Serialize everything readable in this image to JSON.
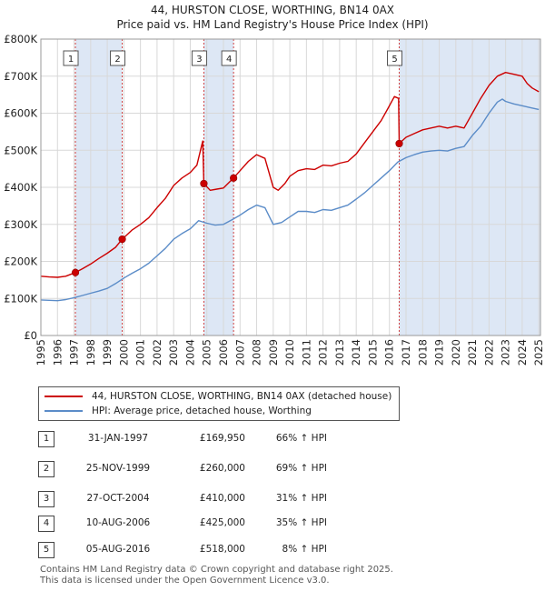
{
  "chart_data": {
    "type": "line",
    "title": "44, HURSTON CLOSE, WORTHING, BN14 0AX",
    "subtitle": "Price paid vs. HM Land Registry's House Price Index (HPI)",
    "xlim": [
      1995,
      2025.1
    ],
    "ylim": [
      0,
      800000
    ],
    "y_ticks": [
      {
        "value": 0,
        "label": "£0"
      },
      {
        "value": 100000,
        "label": "£100K"
      },
      {
        "value": 200000,
        "label": "£200K"
      },
      {
        "value": 300000,
        "label": "£300K"
      },
      {
        "value": 400000,
        "label": "£400K"
      },
      {
        "value": 500000,
        "label": "£500K"
      },
      {
        "value": 600000,
        "label": "£600K"
      },
      {
        "value": 700000,
        "label": "£700K"
      },
      {
        "value": 800000,
        "label": "£800K"
      }
    ],
    "x_ticks": [
      "1995",
      "1996",
      "1997",
      "1998",
      "1999",
      "2000",
      "2001",
      "2002",
      "2003",
      "2004",
      "2005",
      "2006",
      "2007",
      "2008",
      "2009",
      "2010",
      "2011",
      "2012",
      "2013",
      "2014",
      "2015",
      "2016",
      "2017",
      "2018",
      "2019",
      "2020",
      "2021",
      "2022",
      "2023",
      "2024",
      "2025"
    ],
    "colors": {
      "property": "#cc0000",
      "hpi": "#5b8cc8",
      "shade": "#dde7f5",
      "marker_line": "#d04040"
    },
    "series": [
      {
        "name": "44, HURSTON CLOSE, WORTHING, BN14 0AX (detached house)",
        "color": "#cc0000",
        "points": [
          [
            1995.0,
            160000
          ],
          [
            1995.5,
            158000
          ],
          [
            1996.0,
            157000
          ],
          [
            1996.5,
            160000
          ],
          [
            1997.08,
            169950
          ],
          [
            1997.5,
            180000
          ],
          [
            1998.0,
            193000
          ],
          [
            1998.5,
            208000
          ],
          [
            1999.0,
            222000
          ],
          [
            1999.5,
            238000
          ],
          [
            1999.9,
            260000
          ],
          [
            2000.5,
            285000
          ],
          [
            2001.0,
            300000
          ],
          [
            2001.5,
            318000
          ],
          [
            2002.0,
            345000
          ],
          [
            2002.5,
            370000
          ],
          [
            2003.0,
            405000
          ],
          [
            2003.5,
            425000
          ],
          [
            2004.0,
            440000
          ],
          [
            2004.4,
            460000
          ],
          [
            2004.75,
            525000
          ],
          [
            2004.82,
            410000
          ],
          [
            2005.2,
            392000
          ],
          [
            2005.6,
            395000
          ],
          [
            2006.0,
            398000
          ],
          [
            2006.61,
            425000
          ],
          [
            2007.0,
            445000
          ],
          [
            2007.5,
            470000
          ],
          [
            2008.0,
            488000
          ],
          [
            2008.5,
            478000
          ],
          [
            2009.0,
            400000
          ],
          [
            2009.3,
            392000
          ],
          [
            2009.7,
            410000
          ],
          [
            2010.0,
            430000
          ],
          [
            2010.5,
            445000
          ],
          [
            2011.0,
            450000
          ],
          [
            2011.5,
            448000
          ],
          [
            2012.0,
            460000
          ],
          [
            2012.5,
            458000
          ],
          [
            2013.0,
            465000
          ],
          [
            2013.5,
            470000
          ],
          [
            2014.0,
            490000
          ],
          [
            2014.5,
            520000
          ],
          [
            2015.0,
            550000
          ],
          [
            2015.5,
            580000
          ],
          [
            2015.9,
            612000
          ],
          [
            2016.3,
            645000
          ],
          [
            2016.55,
            640000
          ],
          [
            2016.59,
            518000
          ],
          [
            2017.0,
            535000
          ],
          [
            2017.5,
            545000
          ],
          [
            2018.0,
            555000
          ],
          [
            2018.5,
            560000
          ],
          [
            2019.0,
            565000
          ],
          [
            2019.5,
            560000
          ],
          [
            2020.0,
            565000
          ],
          [
            2020.5,
            560000
          ],
          [
            2021.0,
            600000
          ],
          [
            2021.5,
            640000
          ],
          [
            2022.0,
            675000
          ],
          [
            2022.5,
            700000
          ],
          [
            2023.0,
            710000
          ],
          [
            2023.5,
            705000
          ],
          [
            2024.0,
            700000
          ],
          [
            2024.3,
            680000
          ],
          [
            2024.6,
            668000
          ],
          [
            2025.0,
            658000
          ]
        ]
      },
      {
        "name": "HPI: Average price, detached house, Worthing",
        "color": "#5b8cc8",
        "points": [
          [
            1995.0,
            96000
          ],
          [
            1995.5,
            95000
          ],
          [
            1996.0,
            94000
          ],
          [
            1996.5,
            97000
          ],
          [
            1997.0,
            102000
          ],
          [
            1997.5,
            108000
          ],
          [
            1998.0,
            114000
          ],
          [
            1998.5,
            120000
          ],
          [
            1999.0,
            127000
          ],
          [
            1999.5,
            140000
          ],
          [
            2000.0,
            155000
          ],
          [
            2000.5,
            168000
          ],
          [
            2001.0,
            180000
          ],
          [
            2001.5,
            195000
          ],
          [
            2002.0,
            215000
          ],
          [
            2002.5,
            235000
          ],
          [
            2003.0,
            260000
          ],
          [
            2003.5,
            275000
          ],
          [
            2004.0,
            288000
          ],
          [
            2004.5,
            310000
          ],
          [
            2005.0,
            303000
          ],
          [
            2005.5,
            298000
          ],
          [
            2006.0,
            300000
          ],
          [
            2006.5,
            312000
          ],
          [
            2007.0,
            325000
          ],
          [
            2007.5,
            340000
          ],
          [
            2008.0,
            352000
          ],
          [
            2008.5,
            345000
          ],
          [
            2009.0,
            300000
          ],
          [
            2009.5,
            305000
          ],
          [
            2010.0,
            320000
          ],
          [
            2010.5,
            335000
          ],
          [
            2011.0,
            335000
          ],
          [
            2011.5,
            332000
          ],
          [
            2012.0,
            340000
          ],
          [
            2012.5,
            338000
          ],
          [
            2013.0,
            345000
          ],
          [
            2013.5,
            352000
          ],
          [
            2014.0,
            368000
          ],
          [
            2014.5,
            385000
          ],
          [
            2015.0,
            405000
          ],
          [
            2015.5,
            425000
          ],
          [
            2016.0,
            445000
          ],
          [
            2016.5,
            468000
          ],
          [
            2017.0,
            480000
          ],
          [
            2017.5,
            488000
          ],
          [
            2018.0,
            495000
          ],
          [
            2018.5,
            498000
          ],
          [
            2019.0,
            500000
          ],
          [
            2019.5,
            498000
          ],
          [
            2020.0,
            505000
          ],
          [
            2020.5,
            510000
          ],
          [
            2021.0,
            540000
          ],
          [
            2021.5,
            565000
          ],
          [
            2022.0,
            600000
          ],
          [
            2022.5,
            630000
          ],
          [
            2022.8,
            638000
          ],
          [
            2023.0,
            632000
          ],
          [
            2023.5,
            625000
          ],
          [
            2024.0,
            620000
          ],
          [
            2024.5,
            615000
          ],
          [
            2025.0,
            610000
          ]
        ]
      }
    ],
    "transactions": [
      {
        "id": "1",
        "year": 1997.08,
        "date": "31-JAN-1997",
        "price_value": 169950,
        "price": "£169,950",
        "hpi": "66% ↑ HPI"
      },
      {
        "id": "2",
        "year": 1999.9,
        "date": "25-NOV-1999",
        "price_value": 260000,
        "price": "£260,000",
        "hpi": "69% ↑ HPI"
      },
      {
        "id": "3",
        "year": 2004.82,
        "date": "27-OCT-2004",
        "price_value": 410000,
        "price": "£410,000",
        "hpi": "31% ↑ HPI"
      },
      {
        "id": "4",
        "year": 2006.61,
        "date": "10-AUG-2006",
        "price_value": 425000,
        "price": "£425,000",
        "hpi": "35% ↑ HPI"
      },
      {
        "id": "5",
        "year": 2016.59,
        "date": "05-AUG-2016",
        "price_value": 518000,
        "price": "£518,000",
        "hpi": "8% ↑ HPI"
      }
    ],
    "shaded_ranges": [
      [
        1997.08,
        1999.9
      ],
      [
        2004.82,
        2006.61
      ],
      [
        2016.59,
        2025.1
      ]
    ]
  },
  "legend": {
    "property_label": "44, HURSTON CLOSE, WORTHING, BN14 0AX (detached house)",
    "hpi_label": "HPI: Average price, detached house, Worthing"
  },
  "footer": {
    "line1": "Contains HM Land Registry data © Crown copyright and database right 2025.",
    "line2": "This data is licensed under the Open Government Licence v3.0."
  }
}
